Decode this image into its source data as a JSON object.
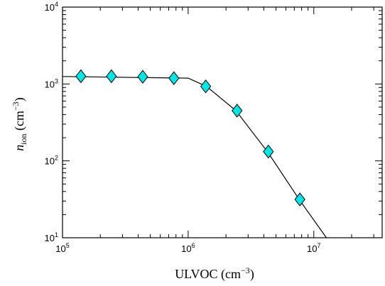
{
  "chart_data": {
    "type": "line",
    "xscale": "log",
    "yscale": "log",
    "xlim": [
      100000,
      35000000
    ],
    "ylim": [
      10,
      10000
    ],
    "xlabel": {
      "main": "ULVOC",
      "unit_open": " (cm",
      "unit_exp": "−3",
      "unit_close": ")"
    },
    "ylabel": {
      "symbol": "n",
      "sub": "ion",
      "unit_open": " (cm",
      "unit_exp": "−3",
      "unit_close": ")"
    },
    "x_ticks": [
      {
        "value": 100000,
        "base": "10",
        "exp": "5"
      },
      {
        "value": 1000000,
        "base": "10",
        "exp": "6"
      },
      {
        "value": 10000000,
        "base": "10",
        "exp": "7"
      }
    ],
    "y_ticks": [
      {
        "value": 10,
        "base": "10",
        "exp": "1"
      },
      {
        "value": 100,
        "base": "10",
        "exp": "2"
      },
      {
        "value": 1000,
        "base": "10",
        "exp": "3"
      },
      {
        "value": 10000,
        "base": "10",
        "exp": "4"
      }
    ],
    "grid": false,
    "series": [
      {
        "marker": "diamond",
        "marker_color": "#00e5e5",
        "line_color": "#000000",
        "line_x": [
          100000,
          1000000,
          1400000,
          2400000,
          4300000,
          7700000,
          12600000
        ],
        "line_y": [
          1250,
          1190,
          930,
          450,
          130,
          31,
          10
        ],
        "x": [
          140000,
          245000,
          435000,
          770000,
          1380000,
          2450000,
          4350000,
          7750000
        ],
        "y": [
          1260,
          1260,
          1240,
          1190,
          930,
          450,
          132,
          31.5
        ]
      }
    ]
  }
}
